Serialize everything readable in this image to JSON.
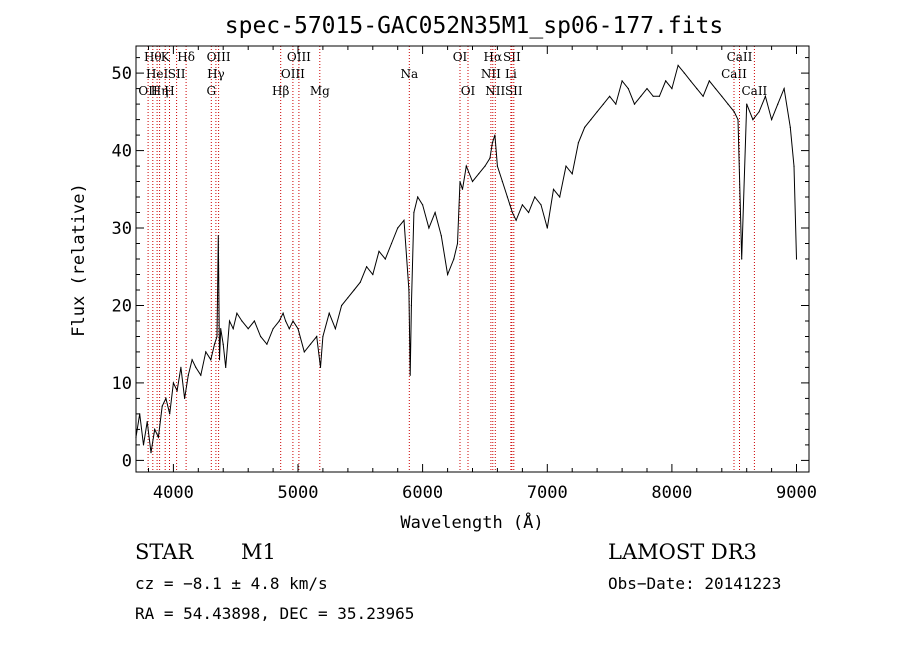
{
  "chart_data": {
    "type": "line",
    "title": "spec-57015-GAC052N35M1_sp06-177.fits",
    "xlabel": "Wavelength (Å)",
    "ylabel": "Flux (relative)",
    "xlim": [
      3700,
      9100
    ],
    "ylim": [
      -1.5,
      53.5
    ],
    "xticks": [
      4000,
      5000,
      6000,
      7000,
      8000,
      9000
    ],
    "yticks": [
      0,
      10,
      20,
      30,
      40,
      50
    ],
    "xtick_labels": [
      "4000",
      "5000",
      "6000",
      "7000",
      "8000",
      "9000"
    ],
    "ytick_labels": [
      "0",
      "10",
      "20",
      "30",
      "40",
      "50"
    ],
    "series": [
      {
        "name": "flux",
        "x": [
          3700,
          3730,
          3760,
          3790,
          3820,
          3850,
          3880,
          3910,
          3940,
          3970,
          4000,
          4030,
          4060,
          4090,
          4120,
          4150,
          4180,
          4220,
          4260,
          4300,
          4330,
          4350,
          4360,
          4370,
          4380,
          4400,
          4420,
          4450,
          4480,
          4510,
          4550,
          4600,
          4650,
          4700,
          4750,
          4800,
          4850,
          4880,
          4900,
          4930,
          4960,
          5000,
          5050,
          5100,
          5150,
          5180,
          5200,
          5250,
          5300,
          5350,
          5400,
          5450,
          5500,
          5550,
          5600,
          5650,
          5700,
          5750,
          5800,
          5850,
          5890,
          5900,
          5910,
          5930,
          5960,
          6000,
          6050,
          6100,
          6150,
          6200,
          6250,
          6280,
          6300,
          6320,
          6350,
          6400,
          6450,
          6500,
          6540,
          6560,
          6580,
          6600,
          6640,
          6680,
          6700,
          6720,
          6750,
          6800,
          6850,
          6900,
          6950,
          7000,
          7050,
          7100,
          7150,
          7200,
          7250,
          7300,
          7350,
          7400,
          7450,
          7500,
          7550,
          7600,
          7650,
          7700,
          7750,
          7800,
          7850,
          7900,
          7950,
          8000,
          8050,
          8100,
          8150,
          8200,
          8250,
          8300,
          8350,
          8400,
          8450,
          8500,
          8530,
          8560,
          8600,
          8650,
          8700,
          8750,
          8800,
          8850,
          8900,
          8950,
          8980,
          9000
        ],
        "y": [
          3,
          6,
          2,
          5,
          1,
          4,
          3,
          7,
          8,
          6,
          10,
          9,
          12,
          8,
          11,
          13,
          12,
          11,
          14,
          13,
          15,
          16,
          29,
          13,
          17,
          15,
          12,
          18,
          17,
          19,
          18,
          17,
          18,
          16,
          15,
          17,
          18,
          19,
          18,
          17,
          18,
          17,
          14,
          15,
          16,
          12,
          16,
          19,
          17,
          20,
          21,
          22,
          23,
          25,
          24,
          27,
          26,
          28,
          30,
          31,
          22,
          11,
          20,
          32,
          34,
          33,
          30,
          32,
          29,
          24,
          26,
          28,
          36,
          35,
          38,
          36,
          37,
          38,
          39,
          41,
          42,
          38,
          36,
          34,
          33,
          32,
          31,
          33,
          32,
          34,
          33,
          30,
          35,
          34,
          38,
          37,
          41,
          43,
          44,
          45,
          46,
          47,
          46,
          49,
          48,
          46,
          47,
          48,
          47,
          47,
          49,
          48,
          51,
          50,
          49,
          48,
          47,
          49,
          48,
          47,
          46,
          45,
          44,
          26,
          46,
          44,
          45,
          47,
          44,
          46,
          48,
          43,
          38,
          26
        ]
      }
    ],
    "lines": [
      {
        "wave": 3797,
        "lbl": "OII",
        "row": 3
      },
      {
        "wave": 3835,
        "lbl": "Hθ",
        "row": 1
      },
      {
        "wave": 3869,
        "lbl": "HeI",
        "row": 2
      },
      {
        "wave": 3889,
        "lbl": "Hη",
        "row": 3
      },
      {
        "wave": 3934,
        "lbl": "K",
        "row": 1
      },
      {
        "wave": 3969,
        "lbl": "H",
        "row": 3
      },
      {
        "wave": 4026,
        "lbl": "SII",
        "row": 2
      },
      {
        "wave": 4102,
        "lbl": "Hδ",
        "row": 1
      },
      {
        "wave": 4304,
        "lbl": "G",
        "row": 3
      },
      {
        "wave": 4341,
        "lbl": "Hγ",
        "row": 2
      },
      {
        "wave": 4363,
        "lbl": "OIII",
        "row": 1
      },
      {
        "wave": 4861,
        "lbl": "Hβ",
        "row": 3
      },
      {
        "wave": 4959,
        "lbl": "OIII",
        "row": 2
      },
      {
        "wave": 5007,
        "lbl": "OIII",
        "row": 1
      },
      {
        "wave": 5175,
        "lbl": "Mg",
        "row": 3
      },
      {
        "wave": 5893,
        "lbl": "Na",
        "row": 2
      },
      {
        "wave": 6300,
        "lbl": "OI",
        "row": 1
      },
      {
        "wave": 6364,
        "lbl": "OI",
        "row": 3
      },
      {
        "wave": 6548,
        "lbl": "NII",
        "row": 2
      },
      {
        "wave": 6563,
        "lbl": "Hα",
        "row": 1
      },
      {
        "wave": 6583,
        "lbl": "NII",
        "row": 3
      },
      {
        "wave": 6708,
        "lbl": "Li",
        "row": 2
      },
      {
        "wave": 6716,
        "lbl": "SII",
        "row": 1
      },
      {
        "wave": 6731,
        "lbl": "SII",
        "row": 3
      },
      {
        "wave": 8498,
        "lbl": "CaII",
        "row": 2
      },
      {
        "wave": 8542,
        "lbl": "CaII",
        "row": 1
      },
      {
        "wave": 8662,
        "lbl": "CaII",
        "row": 3
      }
    ]
  },
  "info": {
    "class": "STAR",
    "subclass": "M1",
    "survey": "LAMOST DR3",
    "cz": "cz = −8.1 ± 4.8 km/s",
    "obs_date": "Obs−Date: 20141223",
    "coords": "RA =  54.43898, DEC =  35.23965"
  }
}
